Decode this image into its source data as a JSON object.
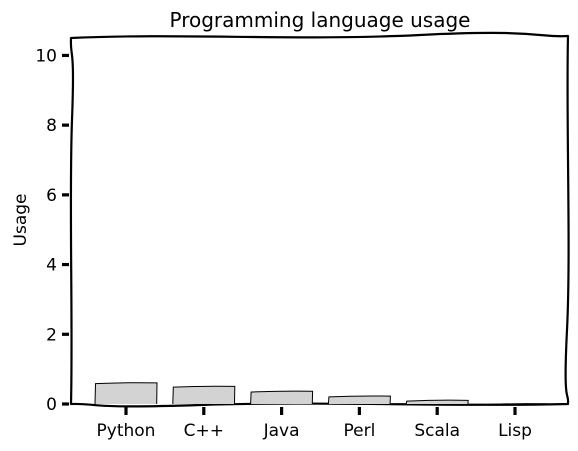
{
  "chart_data": {
    "type": "bar",
    "title": "Programming language usage",
    "xlabel": "",
    "ylabel": "Usage",
    "categories": [
      "Python",
      "C++",
      "Java",
      "Perl",
      "Scala",
      "Lisp"
    ],
    "values": [
      0.6,
      0.5,
      0.36,
      0.22,
      0.1,
      0.0
    ],
    "ylim": [
      0,
      10.5
    ],
    "yticks": [
      0,
      2,
      4,
      6,
      8,
      10
    ],
    "bar_color": "#d3d3d3",
    "style": "xkcd",
    "grid": false,
    "legend": "none"
  }
}
